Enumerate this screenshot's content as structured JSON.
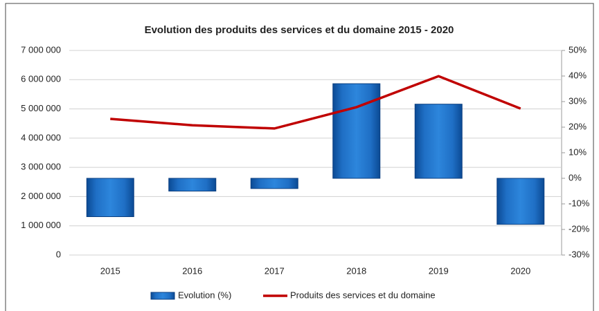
{
  "chart_data": {
    "type": "bar",
    "title": "Evolution des produits des services et du domaine 2015 - 2020",
    "categories": [
      "2015",
      "2016",
      "2017",
      "2018",
      "2019",
      "2020"
    ],
    "series": [
      {
        "name": "Evolution (%)",
        "type": "bar",
        "axis": "y2",
        "color": "#1f6fc5",
        "values": [
          -15,
          -5,
          -4,
          37,
          29,
          -18
        ]
      },
      {
        "name": "Produits des services et du domaine",
        "type": "line",
        "axis": "y",
        "color": "#c00000",
        "values": [
          4660000,
          4440000,
          4330000,
          5060000,
          6120000,
          5010000
        ]
      }
    ],
    "ylim": [
      0,
      7000000
    ],
    "yticks": [
      0,
      {
        "value": 1000000,
        "label": "1 000 000"
      },
      {
        "value": 2000000,
        "label": "2 000 000"
      },
      {
        "value": 3000000,
        "label": "3 000 000"
      },
      {
        "value": 4000000,
        "label": "4 000 000"
      },
      {
        "value": 5000000,
        "label": "5 000 000"
      },
      {
        "value": 6000000,
        "label": "6 000 000"
      },
      {
        "value": 7000000,
        "label": "7 000 000"
      }
    ],
    "y2lim": [
      -30,
      50
    ],
    "y2ticks": [
      {
        "value": -30,
        "label": "-30%"
      },
      {
        "value": -20,
        "label": "-20%"
      },
      {
        "value": -10,
        "label": "-10%"
      },
      {
        "value": 0,
        "label": "0%"
      },
      {
        "value": 10,
        "label": "10%"
      },
      {
        "value": 20,
        "label": "20%"
      },
      {
        "value": 30,
        "label": "30%"
      },
      {
        "value": 40,
        "label": "40%"
      },
      {
        "value": 50,
        "label": "50%"
      }
    ],
    "grid": true,
    "legend": "bottom"
  }
}
